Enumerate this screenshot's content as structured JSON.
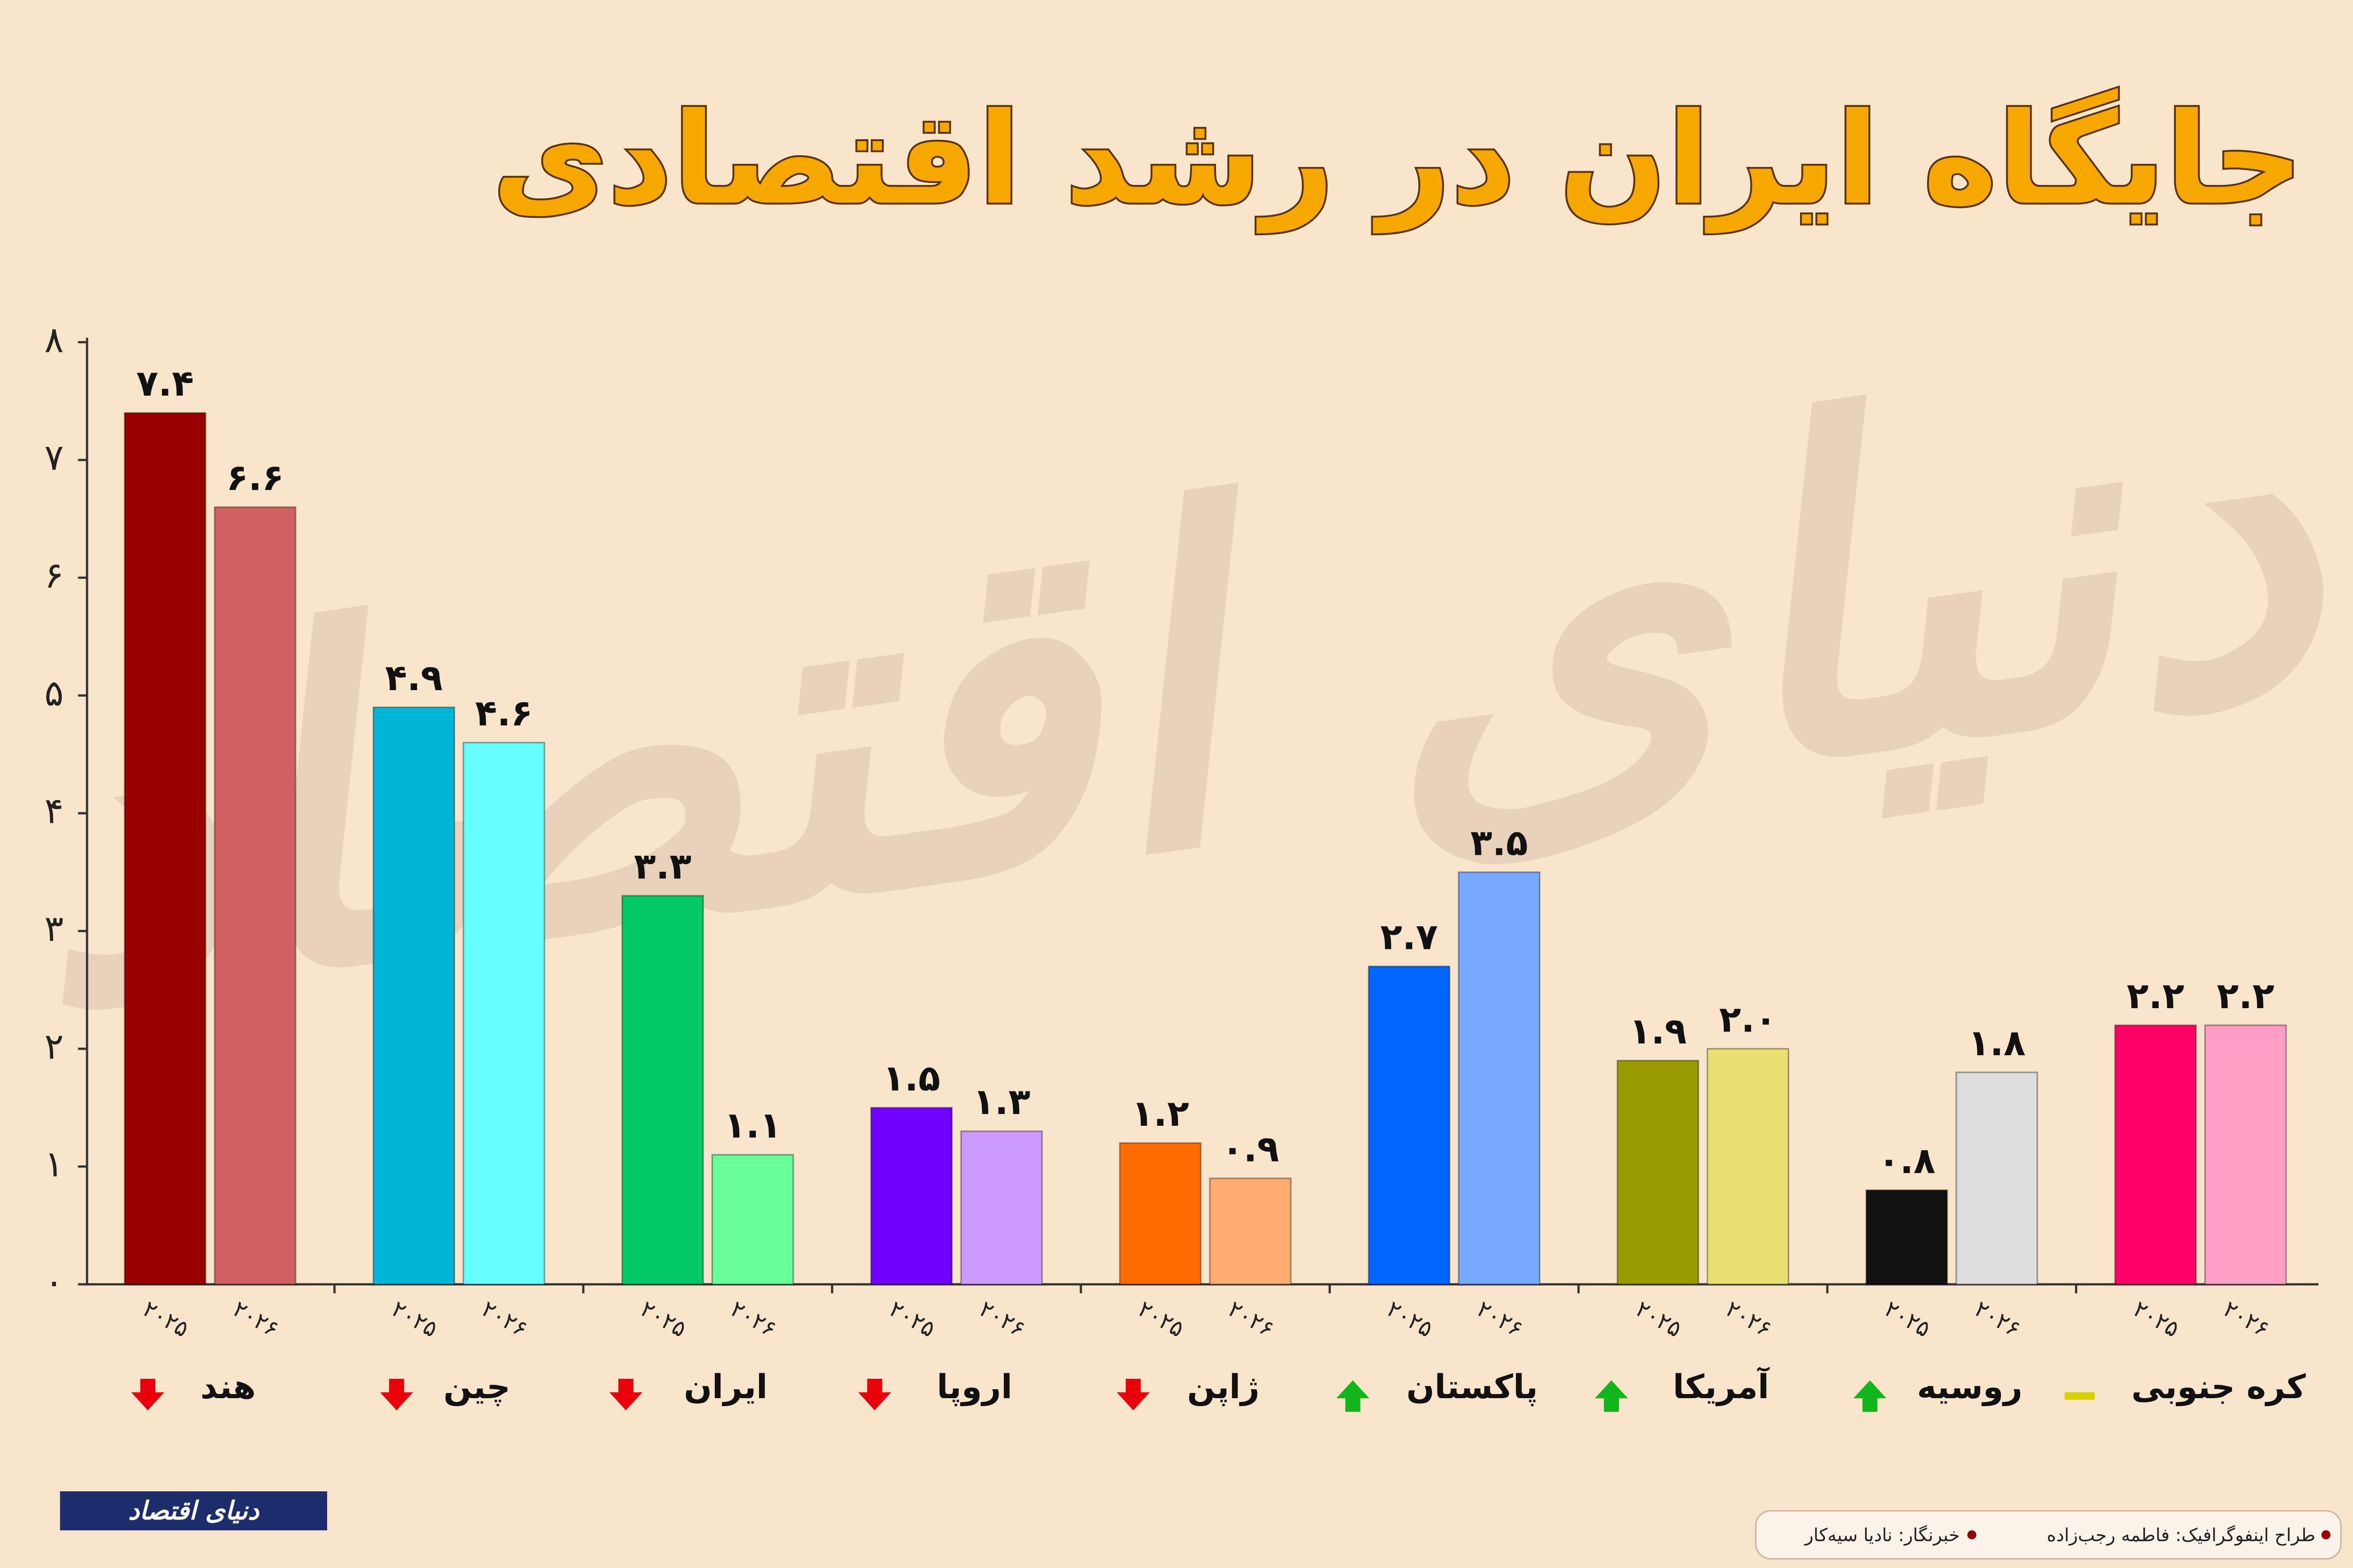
{
  "chart_data": {
    "type": "bar",
    "title": "جایگاه ایران در رشد اقتصادی",
    "categories": [
      "هند",
      "چین",
      "ایران",
      "اروپا",
      "ژاپن",
      "پاکستان",
      "آمریکا",
      "روسیه",
      "کره جنوبی"
    ],
    "trend": [
      "down",
      "down",
      "down",
      "down",
      "down",
      "up",
      "up",
      "up",
      "flat"
    ],
    "trend_colors": {
      "down": "#e8000b",
      "up": "#12b51a",
      "flat": "#d9d000"
    },
    "series": [
      {
        "name": "۲۰۲۵",
        "colors": [
          "#990000",
          "#00b4d8",
          "#00c864",
          "#7000ff",
          "#ff6a00",
          "#0066ff",
          "#999900",
          "#111111",
          "#ff0066"
        ],
        "values": [
          7.4,
          4.9,
          3.3,
          1.5,
          1.2,
          2.7,
          1.9,
          0.8,
          2.2
        ],
        "value_labels": [
          "۷.۴",
          "۴.۹",
          "۳.۳",
          "۱.۵",
          "۱.۲",
          "۲.۷",
          "۱.۹",
          "۰.۸",
          "۲.۲"
        ]
      },
      {
        "name": "۲۰۲۶",
        "colors": [
          "#d06060",
          "#66ffff",
          "#66ff99",
          "#cc99ff",
          "#ffaa70",
          "#77aaff",
          "#e8e070",
          "#dddddd",
          "#ff9ec4"
        ],
        "values": [
          6.6,
          4.6,
          1.1,
          1.3,
          0.9,
          3.5,
          2.0,
          1.8,
          2.2
        ],
        "value_labels": [
          "۶.۶",
          "۴.۶",
          "۱.۱",
          "۱.۳",
          "۰.۹",
          "۳.۵",
          "۲.۰",
          "۱.۸",
          "۲.۲"
        ]
      }
    ],
    "ylim": [
      0,
      8
    ],
    "yticks": [
      {
        "value": 0,
        "label": "۰"
      },
      {
        "value": 1,
        "label": "۱"
      },
      {
        "value": 2,
        "label": "۲"
      },
      {
        "value": 3,
        "label": "۳"
      },
      {
        "value": 4,
        "label": "۴"
      },
      {
        "value": 5,
        "label": "۵"
      },
      {
        "value": 6,
        "label": "۶"
      },
      {
        "value": 7,
        "label": "۷"
      },
      {
        "value": 8,
        "label": "۸"
      }
    ],
    "grid": false
  },
  "footer": {
    "logo": "دنیای اقتصاد",
    "designer": "طراح اینفوگرافیک: فاطمه رجب‌زاده",
    "reporter": "خبرنگار: نادیا سیه‌کار"
  }
}
